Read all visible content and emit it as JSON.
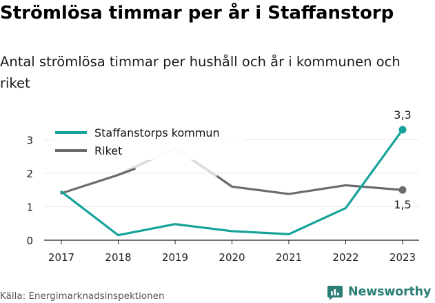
{
  "title": "Strömlösa timmar per år i Staffanstorp",
  "subtitle": "Antal strömlösa timmar per hushåll och år i kommunen och riket",
  "source": "Källa: Energimarknadsinspektionen",
  "brand": "Newsworthy",
  "colors": {
    "kommun": "#13a39a",
    "riket": "#6b6b70",
    "riket_highlight": "#dcdcdc",
    "grid": "#e8e8e8",
    "axis": "#222222",
    "brand": "#2c7f76"
  },
  "chart_data": {
    "type": "line",
    "x": [
      "2017",
      "2018",
      "2019",
      "2020",
      "2021",
      "2022",
      "2023"
    ],
    "ylim": [
      0,
      3.4
    ],
    "yticks": [
      "0",
      "1",
      "2",
      "3"
    ],
    "series": [
      {
        "name": "Staffanstorps kommun",
        "values": [
          1.45,
          0.15,
          0.48,
          0.27,
          0.18,
          0.96,
          3.3
        ]
      },
      {
        "name": "Riket",
        "values": [
          1.4,
          1.95,
          2.75,
          1.6,
          1.38,
          1.64,
          1.5
        ]
      }
    ],
    "end_labels": [
      "3,3",
      "1,5"
    ],
    "grid": true,
    "legend": "top-left"
  }
}
